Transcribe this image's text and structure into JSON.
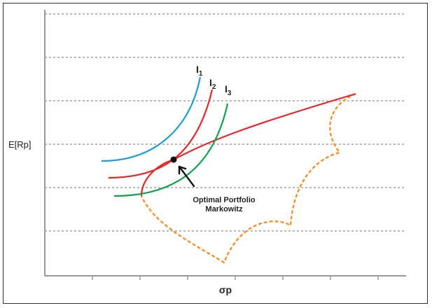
{
  "chart_data": {
    "type": "line",
    "xlabel": "σp",
    "ylabel": "E[Rp]",
    "grid": true,
    "annotation": {
      "line1": "Optimal Portfolio",
      "line2": "Markowitz"
    },
    "indifference_curves": [
      {
        "label_main": "I",
        "label_sub": "1",
        "color": "#1f9bd6"
      },
      {
        "label_main": "I",
        "label_sub": "2",
        "color": "#e2262c"
      },
      {
        "label_main": "I",
        "label_sub": "3",
        "color": "#12a24f"
      }
    ],
    "efficient_frontier_color": "#e2262c",
    "feasible_set_color": "#f28a1e",
    "optimal_point_color": "#111111"
  }
}
